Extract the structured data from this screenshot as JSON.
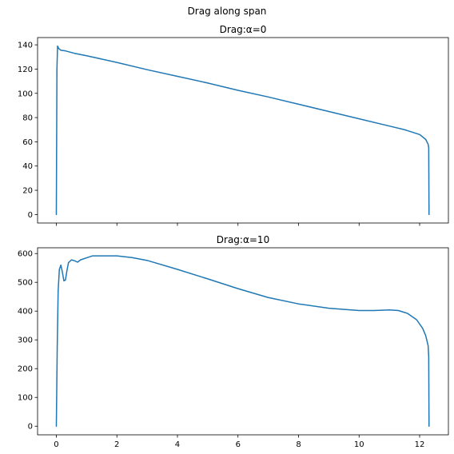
{
  "figure": {
    "suptitle": "Drag along span"
  },
  "chart_data": [
    {
      "type": "line",
      "title": "Drag:α=0",
      "xlabel": "",
      "ylabel": "",
      "xlim": [
        -0.62,
        12.95
      ],
      "ylim": [
        -7,
        146
      ],
      "xticks": [
        0,
        2,
        4,
        6,
        8,
        10,
        12
      ],
      "show_xtick_labels": false,
      "yticks": [
        0,
        20,
        40,
        60,
        80,
        100,
        120,
        140
      ],
      "ytick_labels": [
        "0",
        "20",
        "40",
        "60",
        "80",
        "100",
        "120",
        "140"
      ],
      "grid": false,
      "color": "#1f77b4",
      "series": [
        {
          "x": [
            0.0,
            0.02,
            0.04,
            0.08,
            0.15,
            0.3,
            0.6,
            1.0,
            2.0,
            3.0,
            4.0,
            5.0,
            6.0,
            7.0,
            8.0,
            9.0,
            10.0,
            11.0,
            11.5,
            12.0,
            12.2,
            12.28,
            12.3,
            12.31
          ],
          "y": [
            0,
            120,
            139,
            137,
            135.5,
            135,
            133,
            131,
            125.5,
            119.5,
            114,
            108.5,
            102.5,
            97,
            91,
            85,
            79,
            73,
            70,
            66,
            62,
            58,
            55,
            0
          ]
        }
      ]
    },
    {
      "type": "line",
      "title": "Drag:α=10",
      "xlabel": "",
      "ylabel": "",
      "xlim": [
        -0.62,
        12.95
      ],
      "ylim": [
        -30,
        620
      ],
      "xticks": [
        0,
        2,
        4,
        6,
        8,
        10,
        12
      ],
      "xtick_labels": [
        "0",
        "2",
        "4",
        "6",
        "8",
        "10",
        "12"
      ],
      "show_xtick_labels": true,
      "yticks": [
        0,
        100,
        200,
        300,
        400,
        500,
        600
      ],
      "ytick_labels": [
        "0",
        "100",
        "200",
        "300",
        "400",
        "500",
        "600"
      ],
      "grid": false,
      "color": "#1f77b4",
      "series": [
        {
          "x": [
            0.0,
            0.03,
            0.06,
            0.1,
            0.15,
            0.2,
            0.25,
            0.3,
            0.35,
            0.4,
            0.5,
            0.6,
            0.7,
            0.8,
            1.0,
            1.2,
            1.5,
            2.0,
            2.5,
            3.0,
            4.0,
            5.0,
            6.0,
            7.0,
            8.0,
            9.0,
            10.0,
            10.5,
            11.0,
            11.3,
            11.6,
            11.9,
            12.1,
            12.2,
            12.28,
            12.3,
            12.31
          ],
          "y": [
            0,
            280,
            470,
            545,
            560,
            535,
            505,
            508,
            540,
            568,
            578,
            575,
            570,
            578,
            585,
            592,
            592,
            592,
            586,
            576,
            545,
            512,
            478,
            447,
            425,
            410,
            402,
            402,
            404,
            402,
            392,
            370,
            340,
            315,
            280,
            240,
            0
          ]
        }
      ]
    }
  ]
}
